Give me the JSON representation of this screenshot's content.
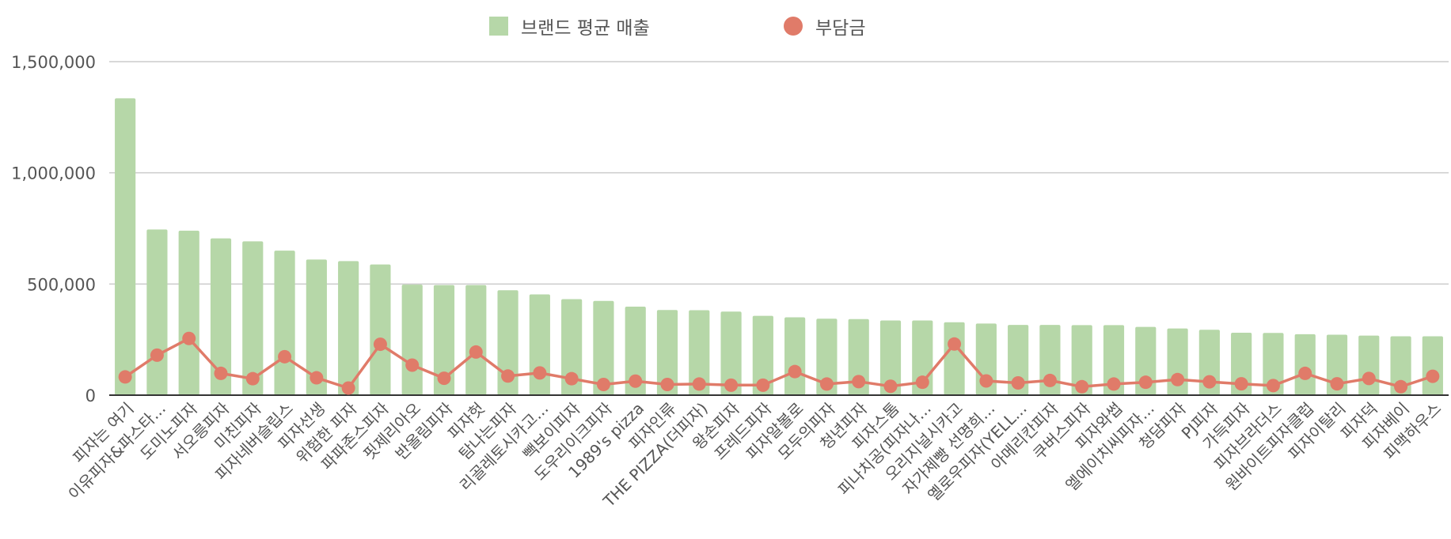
{
  "chart_data": {
    "type": "bar",
    "title": "",
    "xlabel": "",
    "ylabel": "",
    "ylim": [
      0,
      1500000
    ],
    "yticks": [
      "0",
      "500,000",
      "1,000,000",
      "1,500,000"
    ],
    "grid": true,
    "legend_position": "top",
    "categories": [
      "피자는 여기",
      "이유피자&파스타...",
      "도미노피자",
      "서오릉피자",
      "미친피자",
      "피자네버슬립스",
      "피자선생",
      "위험한 피자",
      "파파존스피자",
      "핏제리아오",
      "반올림피자",
      "피자헛",
      "탐나는피자",
      "리골레토시카고...",
      "빽보이피자",
      "도우리이크피자",
      "1989's pizza",
      "피자인류",
      "THE PIZZA(더피자)",
      "왕손피자",
      "프레드피자",
      "피자알볼로",
      "모두의피자",
      "청년피자",
      "피자스톰",
      "피나치공(피자나...",
      "오리지널시카고",
      "자가제빵 선명희...",
      "옐로우피자(YELL...",
      "아메리칸피자",
      "쿠버스피자",
      "피자와썹",
      "엘에이치씨피자...",
      "청담피자",
      "PJ피자",
      "가득피자",
      "피자브라더스",
      "원바이트피자클럽",
      "피자이탈리",
      "피자덕",
      "피자베이",
      "피맥하우스"
    ],
    "series": [
      {
        "name": "브랜드 평균 매출",
        "type": "bar",
        "color": "#b6d7a8",
        "values": [
          1335000,
          745000,
          740000,
          705000,
          692000,
          650000,
          610000,
          603000,
          588000,
          497000,
          495000,
          495000,
          472000,
          453000,
          432000,
          424000,
          398000,
          383000,
          382000,
          376000,
          357000,
          350000,
          344000,
          342000,
          336000,
          336000,
          328000,
          322000,
          316000,
          316000,
          315000,
          315000,
          307000,
          300000,
          294000,
          281000,
          280000,
          274000,
          272000,
          268000,
          265000,
          265000
        ]
      },
      {
        "name": "부담금",
        "type": "line",
        "color": "#e07b69",
        "values": [
          82000,
          180000,
          255000,
          98000,
          74000,
          173000,
          78000,
          32000,
          229000,
          135000,
          76000,
          194000,
          86000,
          100000,
          74000,
          48000,
          63000,
          48000,
          50000,
          45000,
          45000,
          106000,
          50000,
          61000,
          40000,
          58000,
          230000,
          64000,
          55000,
          66000,
          38000,
          50000,
          58000,
          70000,
          60000,
          51000,
          43000,
          98000,
          51000,
          75000,
          38000,
          85000
        ]
      }
    ]
  },
  "colors": {
    "bar": "#b6d7a8",
    "line": "#e07b69",
    "grid": "#cccccc",
    "axis": "#333333",
    "text": "#555555"
  }
}
